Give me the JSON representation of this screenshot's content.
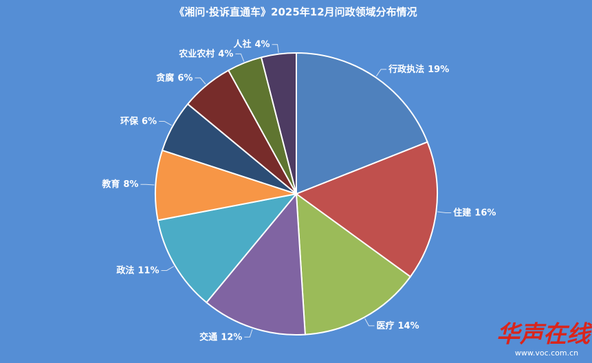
{
  "chart_data": {
    "type": "pie",
    "title": "《湘问·投诉直通车》2025年12月问政领域分布情况",
    "categories": [
      "行政执法",
      "住建",
      "医疗",
      "交通",
      "政法",
      "教育",
      "环保",
      "贪腐",
      "农业农村",
      "人社"
    ],
    "values": [
      19,
      16,
      14,
      12,
      11,
      8,
      6,
      6,
      4,
      4
    ],
    "value_labels": [
      "19%",
      "16%",
      "14%",
      "12%",
      "11%",
      "8%",
      "6%",
      "6%",
      "4%",
      "4%"
    ],
    "colors": [
      "#4f81bd",
      "#c0504d",
      "#9bbb59",
      "#8064a2",
      "#4bacc6",
      "#f79646",
      "#2c4d75",
      "#772c2a",
      "#5f7530",
      "#4d3b62"
    ]
  },
  "watermark": {
    "logo": "华声在线",
    "url": "www.voc.com.cn"
  }
}
